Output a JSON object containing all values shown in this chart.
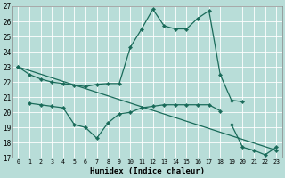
{
  "xlabel": "Humidex (Indice chaleur)",
  "bg_color": "#b8ddd8",
  "line_color": "#1a6b5a",
  "grid_color": "#ffffff",
  "xlim": [
    -0.5,
    23.5
  ],
  "ylim": [
    17,
    27
  ],
  "yticks": [
    17,
    18,
    19,
    20,
    21,
    22,
    23,
    24,
    25,
    26,
    27
  ],
  "xticks": [
    0,
    1,
    2,
    3,
    4,
    5,
    6,
    7,
    8,
    9,
    10,
    11,
    12,
    13,
    14,
    15,
    16,
    17,
    18,
    19,
    20,
    21,
    22,
    23
  ],
  "lines": [
    {
      "x": [
        0,
        1,
        2,
        3,
        4,
        5,
        6,
        7,
        8,
        9,
        10,
        11,
        12,
        13,
        14,
        15,
        16,
        17,
        18,
        19,
        20
      ],
      "y": [
        23.0,
        22.5,
        22.2,
        22.0,
        21.9,
        21.8,
        21.7,
        21.85,
        21.9,
        21.9,
        24.3,
        25.5,
        26.8,
        25.7,
        25.5,
        25.5,
        26.2,
        26.7,
        22.5,
        20.8,
        20.7
      ]
    },
    {
      "x": [
        1,
        2,
        3,
        4,
        5,
        6,
        7,
        8,
        9,
        10,
        11,
        12,
        13,
        14,
        15,
        16,
        17,
        18
      ],
      "y": [
        20.6,
        20.5,
        20.4,
        20.3,
        19.2,
        19.0,
        18.3,
        19.3,
        19.9,
        20.0,
        20.3,
        20.4,
        20.5,
        20.5,
        20.5,
        20.5,
        20.5,
        20.1
      ]
    },
    {
      "x": [
        0,
        23
      ],
      "y": [
        23.0,
        17.5
      ]
    },
    {
      "x": [
        19,
        20,
        21,
        22,
        23
      ],
      "y": [
        19.2,
        17.7,
        17.5,
        17.2,
        17.7
      ]
    }
  ]
}
